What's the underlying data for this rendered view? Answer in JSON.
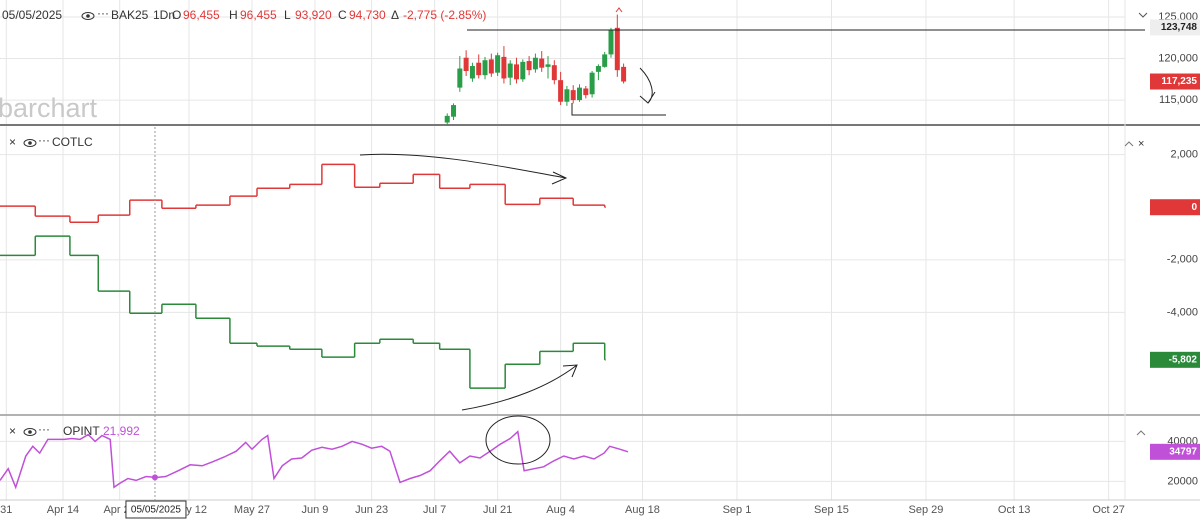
{
  "header": {
    "date": "05/05/2025",
    "symbol": "BAK25",
    "interval": "1Dn",
    "open_label": "O",
    "open": "96,455",
    "high_label": "H",
    "high": "96,455",
    "low_label": "L",
    "low": "93,920",
    "close_label": "C",
    "close": "94,730",
    "change_label": "Δ",
    "change": "-2,775 (-2.85%)",
    "watermark": "barchart"
  },
  "chart_data": [
    {
      "type": "candlestick",
      "x": [
        70,
        71,
        72,
        73,
        74,
        75,
        76,
        77,
        78,
        79,
        80,
        81,
        82,
        83,
        84,
        85,
        86,
        87,
        88,
        89,
        90,
        91,
        92,
        93,
        94,
        95,
        96,
        97,
        98
      ],
      "open": [
        112300,
        113000,
        116500,
        120100,
        117600,
        119500,
        118000,
        119900,
        118300,
        120200,
        117700,
        119300,
        117500,
        119700,
        118700,
        120000,
        119000,
        119200,
        117400,
        114800,
        116200,
        115000,
        116400,
        115700,
        118400,
        119000,
        120500,
        123700,
        119000
      ],
      "high": [
        113400,
        114600,
        120300,
        121000,
        119500,
        120500,
        120200,
        120600,
        120700,
        121500,
        119800,
        120100,
        119900,
        120300,
        120600,
        120900,
        120300,
        119800,
        118400,
        116700,
        116800,
        116900,
        116700,
        118500,
        119300,
        120800,
        123700,
        125300,
        119400
      ],
      "low": [
        112000,
        112600,
        116000,
        117900,
        117200,
        117600,
        117500,
        117800,
        117900,
        117000,
        116800,
        117000,
        117200,
        118000,
        118300,
        118400,
        117600,
        116900,
        114400,
        114300,
        114600,
        114800,
        115200,
        115300,
        117400,
        118900,
        120100,
        117800,
        117000
      ],
      "close": [
        113100,
        114400,
        118800,
        118500,
        119100,
        118000,
        119800,
        118200,
        120400,
        117600,
        119400,
        117500,
        119600,
        118600,
        120100,
        118900,
        119300,
        117400,
        114800,
        116300,
        115000,
        116500,
        115600,
        118300,
        119100,
        120500,
        123400,
        118600,
        117235
      ],
      "up_color": "#2a9d48",
      "down_color": "#e03838",
      "ylim": [
        112000,
        127050
      ],
      "yticks": [
        {
          "value": 115000,
          "label": "115,000"
        },
        {
          "value": 120000,
          "label": "120,000"
        },
        {
          "value": 125000,
          "label": "125,000"
        }
      ],
      "tags": [
        {
          "value": 123748,
          "label": "123,748",
          "color": "#eeeeee",
          "text_color": "#222222"
        },
        {
          "value": 117235,
          "label": "117,235",
          "color": "#e03838",
          "text_color": "#ffffff"
        }
      ]
    },
    {
      "type": "step",
      "title": "COTLC",
      "x": [
        -1,
        4.6,
        10.1,
        14.6,
        19.6,
        24.7,
        30.1,
        35.5,
        39.8,
        45,
        50.1,
        55.3,
        59.3,
        64.6,
        68.8,
        73.6,
        79.2,
        84.7,
        90,
        95
      ],
      "series": [
        {
          "color": "#e03838",
          "values": [
            40,
            -340,
            -570,
            -300,
            270,
            -40,
            80,
            420,
            720,
            870,
            1630,
            760,
            910,
            1250,
            720,
            870,
            110,
            340,
            80,
            0
          ]
        },
        {
          "color": "#2a8a3a",
          "values": [
            -1830,
            -1100,
            -1830,
            -3190,
            -4030,
            -3690,
            -4220,
            -5170,
            -5280,
            -5400,
            -5700,
            -5170,
            -5020,
            -5170,
            -5400,
            -6880,
            -5970,
            -5480,
            -5170,
            -5802
          ]
        }
      ],
      "ylim": [
        -7900,
        3050
      ],
      "yticks": [
        {
          "value": 2000,
          "label": "2,000"
        },
        {
          "value": -2000,
          "label": "-2,000"
        },
        {
          "value": -4000,
          "label": "-4,000"
        }
      ],
      "tags": [
        {
          "value": 0,
          "label": "0",
          "color": "#e03838",
          "text_color": "#ffffff"
        },
        {
          "value": -5802,
          "label": "-5,802",
          "color": "#2a8a3a",
          "text_color": "#ffffff"
        }
      ]
    },
    {
      "type": "line",
      "title": "OPINT",
      "color": "#c050d8",
      "x": [
        -1.0,
        0.3,
        1.5,
        3.1,
        4.2,
        5.3,
        6.6,
        7.9,
        9.2,
        10.4,
        11.7,
        13.0,
        14.1,
        15.2,
        16.5,
        17.1,
        18.0,
        19.3,
        20.6,
        22.2,
        23.8,
        25.3,
        27.3,
        29.2,
        31.1,
        32.7,
        34.6,
        36.5,
        38.0,
        39.0,
        40.6,
        41.5,
        42.5,
        43.8,
        45.3,
        46.9,
        48.5,
        50.1,
        51.7,
        53.3,
        54.9,
        56.5,
        58.0,
        59.6,
        60.9,
        62.5,
        64.1,
        65.7,
        67.3,
        68.8,
        70.4,
        72.0,
        73.6,
        75.2,
        76.8,
        78.4,
        80.0,
        81.2,
        82.2,
        83.8,
        85.3,
        86.9,
        88.5,
        90.1,
        91.7,
        93.3,
        94.9,
        95.8,
        97.4,
        98.7
      ],
      "values": [
        20490,
        26340,
        17070,
        32680,
        37560,
        34150,
        40980,
        40980,
        40980,
        41460,
        40980,
        43410,
        40000,
        42930,
        40980,
        17070,
        19020,
        21460,
        20490,
        22440,
        21950,
        22440,
        25370,
        28290,
        27800,
        29760,
        32200,
        35120,
        39510,
        36100,
        40980,
        42930,
        21460,
        27800,
        31220,
        31710,
        35610,
        37070,
        36100,
        37560,
        40000,
        38540,
        36590,
        37560,
        35120,
        19510,
        21460,
        22930,
        25370,
        30240,
        35120,
        29270,
        32680,
        31710,
        35120,
        38540,
        41460,
        44880,
        25370,
        26340,
        27320,
        30240,
        32680,
        31220,
        32680,
        31220,
        34150,
        37560,
        36100,
        34797
      ],
      "ylim": [
        10700,
        52200
      ],
      "yticks": [
        20000,
        40000
      ],
      "tags": [
        {
          "value": 34797,
          "label": "34797",
          "color": "#c050d8",
          "text_color": "#ffffff"
        }
      ],
      "crosshair_value": {
        "value": 21992,
        "label": "21,992"
      },
      "crosshair": {
        "x": 23.6,
        "label": "05/05/2025"
      },
      "xlim": [
        -1,
        177.6
      ],
      "xticks": [
        {
          "value": 0,
          "label": "31"
        },
        {
          "value": 9,
          "label": "Apr 14"
        },
        {
          "value": 18,
          "label": "Apr 28"
        },
        {
          "value": 29,
          "label": "May 12"
        },
        {
          "value": 39,
          "label": "May 27"
        },
        {
          "value": 49,
          "label": "Jun 9"
        },
        {
          "value": 58,
          "label": "Jun 23"
        },
        {
          "value": 68,
          "label": "Jul 7"
        },
        {
          "value": 78,
          "label": "Jul 21"
        },
        {
          "value": 88,
          "label": "Aug 4"
        },
        {
          "value": 101,
          "label": "Aug 18"
        },
        {
          "value": 116,
          "label": "Sep 1"
        },
        {
          "value": 131,
          "label": "Sep 15"
        },
        {
          "value": 146,
          "label": "Sep 29"
        },
        {
          "value": 160,
          "label": "Oct 13"
        },
        {
          "value": 175,
          "label": "Oct 27"
        }
      ]
    }
  ]
}
